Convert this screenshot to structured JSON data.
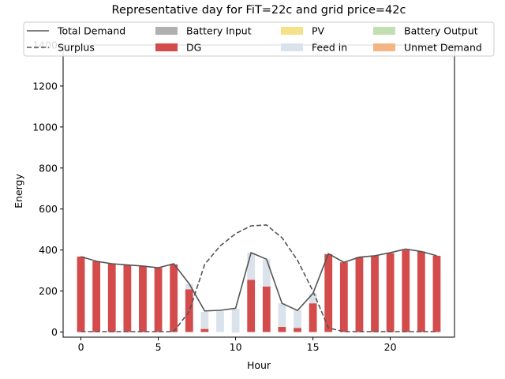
{
  "chart_data": {
    "type": "bar",
    "title": "Representative day for FiT=22c and grid price=42c",
    "xlabel": "Hour",
    "ylabel": "Energy",
    "xlim": [
      -1.15,
      24.15
    ],
    "ylim": [
      -25,
      1400
    ],
    "x_ticks": [
      0,
      5,
      10,
      15,
      20
    ],
    "y_ticks": [
      0,
      200,
      400,
      600,
      800,
      1000,
      1200,
      1400
    ],
    "grid": false,
    "legend_position": "top",
    "hours": [
      0,
      1,
      2,
      3,
      4,
      5,
      6,
      7,
      8,
      9,
      10,
      11,
      12,
      13,
      14,
      15,
      16,
      17,
      18,
      19,
      20,
      21,
      22,
      23
    ],
    "bar_series": [
      {
        "name": "Battery Input",
        "color": "#b0b0b0",
        "values": [
          0,
          0,
          0,
          0,
          0,
          0,
          0,
          0,
          0,
          0,
          0,
          0,
          0,
          0,
          0,
          0,
          0,
          0,
          0,
          0,
          0,
          0,
          0,
          0
        ]
      },
      {
        "name": "DG",
        "color": "#d44b4b",
        "values": [
          368,
          345,
          333,
          327,
          322,
          313,
          330,
          208,
          15,
          0,
          0,
          255,
          222,
          25,
          20,
          140,
          380,
          340,
          365,
          372,
          385,
          400,
          393,
          372
        ]
      },
      {
        "name": "PV",
        "color": "#f6e08a",
        "values": [
          0,
          0,
          0,
          0,
          0,
          0,
          0,
          0,
          0,
          0,
          0,
          0,
          0,
          0,
          0,
          0,
          0,
          0,
          0,
          0,
          0,
          0,
          0,
          0
        ]
      },
      {
        "name": "Feed in",
        "color": "#dae3ec",
        "values": [
          0,
          0,
          0,
          0,
          0,
          0,
          3,
          27,
          83,
          103,
          113,
          132,
          132,
          115,
          88,
          48,
          2,
          0,
          0,
          0,
          0,
          0,
          0,
          0
        ]
      },
      {
        "name": "Battery Output",
        "color": "#c2dfb2",
        "values": [
          0,
          0,
          0,
          0,
          0,
          0,
          0,
          0,
          0,
          0,
          0,
          0,
          0,
          0,
          0,
          0,
          0,
          0,
          0,
          0,
          0,
          0,
          0,
          0
        ]
      },
      {
        "name": "Unmet Demand",
        "color": "#f4b584",
        "values": [
          0,
          0,
          0,
          0,
          0,
          0,
          0,
          0,
          0,
          0,
          0,
          0,
          0,
          0,
          0,
          0,
          0,
          0,
          0,
          0,
          0,
          0,
          0,
          0
        ]
      }
    ],
    "line_series": [
      {
        "name": "Total Demand",
        "color": "#555555",
        "style": "solid",
        "values": [
          368,
          345,
          333,
          327,
          322,
          313,
          333,
          235,
          103,
          106,
          116,
          387,
          355,
          140,
          105,
          188,
          382,
          340,
          365,
          372,
          387,
          405,
          393,
          372
        ]
      },
      {
        "name": "Surplus",
        "color": "#555555",
        "style": "dashed",
        "values": [
          2,
          2,
          2,
          2,
          2,
          2,
          2,
          100,
          330,
          420,
          480,
          518,
          522,
          460,
          350,
          200,
          20,
          2,
          2,
          2,
          2,
          2,
          2,
          2
        ]
      }
    ],
    "feed_in_below_zero": {
      "hour": 10,
      "value": -3
    }
  }
}
